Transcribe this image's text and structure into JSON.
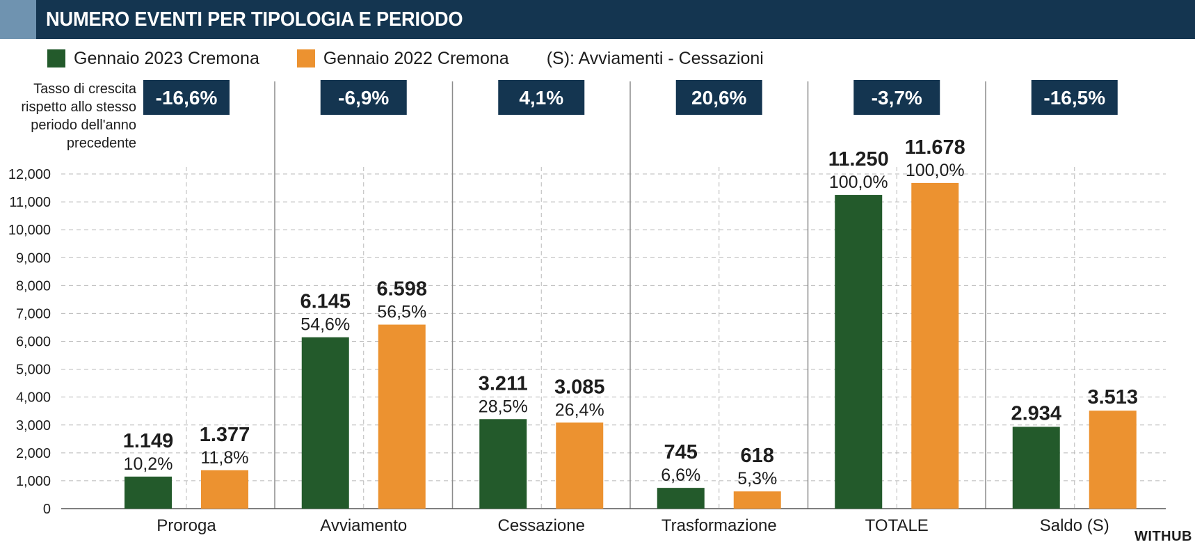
{
  "header": {
    "title": "NUMERO EVENTI PER TIPOLOGIA E PERIODO"
  },
  "legend": {
    "items": [
      {
        "label": "Gennaio 2023 Cremona",
        "color": "#235a2b"
      },
      {
        "label": "Gennaio 2022 Cremona",
        "color": "#ec9230"
      }
    ],
    "note": "(S): Avviamenti - Cessazioni"
  },
  "growth_caption": "Tasso di crescita rispetto allo stesso periodo dell'anno precedente",
  "source": "WITHUB",
  "colors": {
    "header_bg": "#143550",
    "header_accent": "#6f93b0",
    "badge_bg": "#143550",
    "axis_text": "#1d1d1d",
    "grid": "#b8b8b8",
    "separator": "#8c8c8c"
  },
  "chart_data": {
    "type": "bar",
    "title": "NUMERO EVENTI PER TIPOLOGIA E PERIODO",
    "categories": [
      "Proroga",
      "Avviamento",
      "Cessazione",
      "Trasformazione",
      "TOTALE",
      "Saldo (S)"
    ],
    "series": [
      {
        "name": "Gennaio 2023 Cremona",
        "color": "#235a2b",
        "values": [
          1149,
          6145,
          3211,
          745,
          11250,
          2934
        ],
        "value_labels": [
          "1.149",
          "6.145",
          "3.211",
          "745",
          "11.250",
          "2.934"
        ],
        "percent_labels": [
          "10,2%",
          "54,6%",
          "28,5%",
          "6,6%",
          "100,0%",
          ""
        ]
      },
      {
        "name": "Gennaio 2022 Cremona",
        "color": "#ec9230",
        "values": [
          1377,
          6598,
          3085,
          618,
          11678,
          3513
        ],
        "value_labels": [
          "1.377",
          "6.598",
          "3.085",
          "618",
          "11.678",
          "3.513"
        ],
        "percent_labels": [
          "11,8%",
          "56,5%",
          "26,4%",
          "5,3%",
          "100,0%",
          ""
        ]
      }
    ],
    "growth_rates": [
      "-16,6%",
      "-6,9%",
      "4,1%",
      "20,6%",
      "-3,7%",
      "-16,5%"
    ],
    "ylim": [
      0,
      12000
    ],
    "yticks": [
      0,
      1000,
      2000,
      3000,
      4000,
      5000,
      6000,
      7000,
      8000,
      9000,
      10000,
      11000,
      12000
    ],
    "ytick_labels": [
      "0",
      "1,000",
      "2,000",
      "3,000",
      "4,000",
      "5,000",
      "6,000",
      "7,000",
      "8,000",
      "9,000",
      "10,000",
      "11,000",
      "12,000"
    ],
    "grid": true,
    "legend_position": "top-left"
  }
}
